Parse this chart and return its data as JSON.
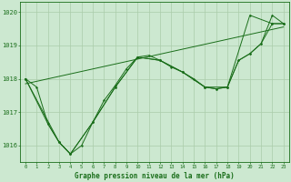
{
  "background_color": "#cce8d0",
  "grid_color": "#aaccaa",
  "line_color": "#1a6e1a",
  "title": "Graphe pression niveau de la mer (hPa)",
  "xlim": [
    -0.5,
    23.5
  ],
  "ylim": [
    1015.5,
    1020.3
  ],
  "yticks": [
    1016,
    1017,
    1018,
    1019,
    1020
  ],
  "xticks": [
    0,
    1,
    2,
    3,
    4,
    5,
    6,
    7,
    8,
    9,
    10,
    11,
    12,
    13,
    14,
    15,
    16,
    17,
    18,
    19,
    20,
    21,
    22,
    23
  ],
  "series1": {
    "x": [
      0,
      1,
      2,
      3,
      4,
      5,
      6,
      7,
      8,
      9,
      10,
      11,
      12,
      13,
      14,
      15,
      16,
      17,
      18,
      19,
      20,
      21,
      22,
      23
    ],
    "y": [
      1018.0,
      1017.75,
      1016.65,
      1016.1,
      1015.75,
      1016.0,
      1016.7,
      1017.35,
      1017.8,
      1018.3,
      1018.65,
      1018.7,
      1018.55,
      1018.35,
      1018.2,
      1018.0,
      1017.75,
      1017.7,
      1017.75,
      1018.55,
      1018.75,
      1019.05,
      1019.9,
      1019.65
    ]
  },
  "series2": {
    "x": [
      0,
      3,
      4,
      6,
      8,
      10,
      12,
      14,
      16,
      18,
      20,
      22,
      23
    ],
    "y": [
      1018.0,
      1016.1,
      1015.75,
      1016.7,
      1017.75,
      1018.65,
      1018.55,
      1018.2,
      1017.75,
      1017.75,
      1019.9,
      1019.65,
      1019.65
    ]
  },
  "series3": {
    "x": [
      0,
      2,
      3,
      4,
      6,
      8,
      10,
      12,
      14,
      16,
      17,
      18,
      19,
      20,
      21,
      22,
      23
    ],
    "y": [
      1018.0,
      1016.65,
      1016.1,
      1015.75,
      1016.7,
      1017.75,
      1018.65,
      1018.55,
      1018.2,
      1017.75,
      1017.7,
      1017.75,
      1018.55,
      1018.75,
      1019.05,
      1019.65,
      1019.65
    ]
  },
  "series4": {
    "x": [
      0,
      23
    ],
    "y": [
      1017.85,
      1019.55
    ]
  }
}
